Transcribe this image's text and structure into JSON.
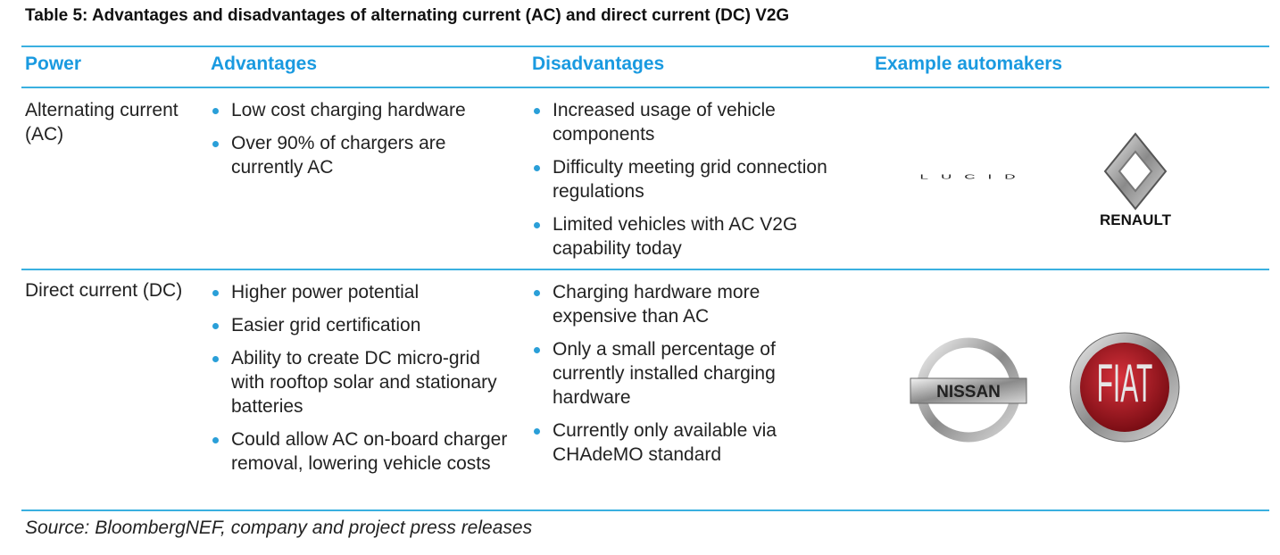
{
  "title": "Table 5: Advantages and disadvantages of alternating current (AC) and direct current (DC) V2G",
  "table": {
    "headers": [
      "Power",
      "Advantages",
      "Disadvantages",
      "Example automakers"
    ],
    "rows": [
      {
        "power": "Alternating current (AC)",
        "advantages": [
          "Low cost charging hardware",
          "Over 90% of chargers are currently AC"
        ],
        "disadvantages": [
          "Increased usage of vehicle components",
          "Difficulty meeting grid connection regulations",
          "Limited vehicles with AC V2G capability today"
        ],
        "automakers": [
          "LUCID",
          "RENAULT"
        ]
      },
      {
        "power": "Direct current (DC)",
        "advantages": [
          "Higher power potential",
          "Easier grid certification",
          "Ability to create DC micro-grid with rooftop solar and stationary batteries",
          "Could allow AC on-board charger removal, lowering vehicle costs"
        ],
        "disadvantages": [
          "Charging hardware more expensive than AC",
          "Only a small percentage of currently installed charging hardware",
          "Currently only available via CHAdeMO standard"
        ],
        "automakers": [
          "NISSAN",
          "FIAT"
        ]
      }
    ]
  },
  "source": "Source: BloombergNEF, company and project press releases"
}
